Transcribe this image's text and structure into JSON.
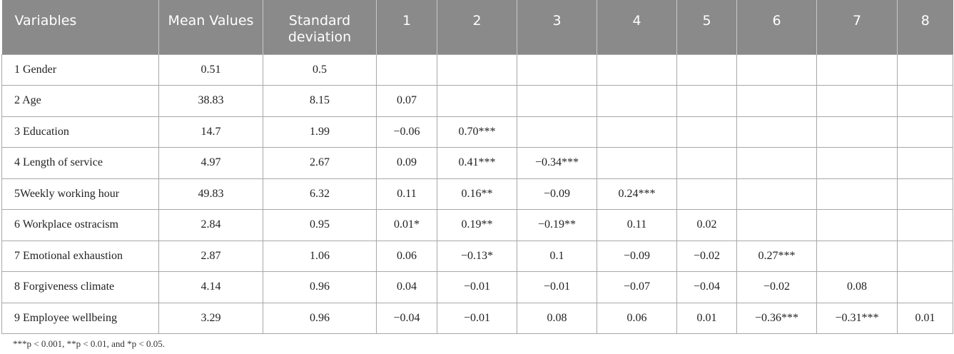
{
  "table": {
    "header": [
      "Variables",
      "Mean Values",
      "Standard deviation",
      "1",
      "2",
      "3",
      "4",
      "5",
      "6",
      "7",
      "8"
    ],
    "rows": [
      [
        "1 Gender",
        "0.51",
        "0.5"
      ],
      [
        "2 Age",
        "38.83",
        "8.15",
        "0.07"
      ],
      [
        "3 Education",
        "14.7",
        "1.99",
        "−0.06",
        "0.70***"
      ],
      [
        "4 Length of service",
        "4.97",
        "2.67",
        "0.09",
        "0.41***",
        "−0.34***"
      ],
      [
        "5Weekly working hour",
        "49.83",
        "6.32",
        "0.11",
        "0.16**",
        "−0.09",
        "0.24***"
      ],
      [
        "6 Workplace ostracism",
        "2.84",
        "0.95",
        "0.01*",
        "0.19**",
        "−0.19**",
        "0.11",
        "0.02"
      ],
      [
        "7 Emotional exhaustion",
        "2.87",
        "1.06",
        "0.06",
        "−0.13*",
        "0.1",
        "−0.09",
        "−0.02",
        "0.27***"
      ],
      [
        "8 Forgiveness climate",
        "4.14",
        "0.96",
        "0.04",
        "−0.01",
        "−0.01",
        "−0.07",
        "−0.04",
        "−0.02",
        "0.08"
      ],
      [
        "9 Employee wellbeing",
        "3.29",
        "0.96",
        "−0.04",
        "−0.01",
        "0.08",
        "0.06",
        "0.01",
        "−0.36***",
        "−0.31***",
        "0.01"
      ]
    ],
    "footnote": "***p < 0.001, **p < 0.01, and *p < 0.05."
  }
}
